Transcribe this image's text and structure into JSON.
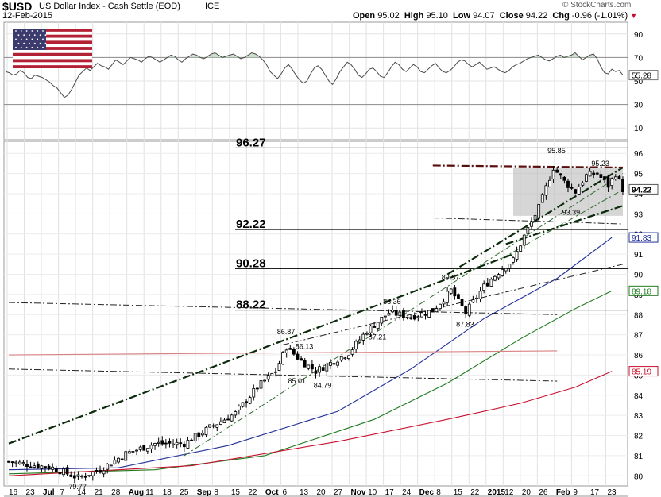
{
  "header": {
    "symbol": "$USD",
    "name": "US Dollar Index - Cash Settle (EOD)",
    "exchange": "ICE",
    "date": "12-Feb-2015",
    "watermark": "© StockCharts.com",
    "open_label": "Open",
    "open": "95.02",
    "high_label": "High",
    "high": "95.10",
    "low_label": "Low",
    "low": "94.07",
    "close_label": "Close",
    "close": "94.22",
    "chg_label": "Chg",
    "chg": "-0.96 (-1.01%)"
  },
  "colors": {
    "candle": "#000000",
    "sma_blue": "#1f2f9a",
    "sma_green": "#1e7a1e",
    "sma_red": "#c8102e",
    "pink_line": "#d98080",
    "rsi_line": "#4a4a4a",
    "flag_field": "#ffffff",
    "flag_fill": "#b22234",
    "flag_canton": "#3c3b6e"
  },
  "chart_data": [
    {
      "type": "line",
      "panel": "indicator",
      "ylim": [
        0,
        100
      ],
      "yticks": [
        10,
        30,
        50,
        70,
        90
      ],
      "last_value_label": "55.28",
      "overbought": 70,
      "oversold": 30,
      "values": [
        58,
        57,
        55,
        56,
        59,
        57,
        53,
        52,
        55,
        54,
        53,
        51,
        49,
        46,
        44,
        40,
        36,
        38,
        43,
        49,
        55,
        58,
        61,
        59,
        62,
        65,
        63,
        62,
        60,
        64,
        68,
        66,
        64,
        67,
        70,
        69,
        68,
        66,
        69,
        71,
        70,
        68,
        66,
        68,
        70,
        72,
        71,
        68,
        66,
        69,
        71,
        73,
        72,
        70,
        69,
        71,
        73,
        74,
        72,
        70,
        71,
        72,
        73,
        71,
        69,
        70,
        72,
        74,
        73,
        71,
        68,
        64,
        58,
        55,
        52,
        56,
        61,
        64,
        60,
        55,
        51,
        48,
        50,
        56,
        61,
        63,
        60,
        55,
        50,
        47,
        52,
        58,
        62,
        66,
        64,
        60,
        55,
        53,
        56,
        60,
        61,
        58,
        54,
        53,
        57,
        62,
        66,
        64,
        60,
        58,
        61,
        64,
        62,
        58,
        57,
        60,
        63,
        65,
        61,
        58,
        57,
        59,
        62,
        66,
        68,
        67,
        64,
        62,
        64,
        66,
        63,
        60,
        61,
        62,
        60,
        58,
        57,
        59,
        62,
        64,
        65,
        67,
        69,
        70,
        71,
        72,
        70,
        68,
        67,
        69,
        71,
        72,
        70,
        71,
        72,
        74,
        71,
        68,
        70,
        72,
        73,
        69,
        62,
        57,
        56,
        60,
        58,
        59,
        55
      ]
    },
    {
      "type": "candlestick",
      "panel": "price",
      "ylim": [
        79.5,
        96.6
      ],
      "yticks": [
        80,
        81,
        82,
        83,
        84,
        85,
        86,
        87,
        88,
        89,
        90,
        91,
        92,
        93,
        94,
        95,
        96
      ],
      "x_labels": [
        "16",
        "23",
        "Jul",
        "7",
        "14",
        "21",
        "28",
        "Aug",
        "11",
        "18",
        "25",
        "Sep",
        "8",
        "15",
        "22",
        "Oct",
        "6",
        "13",
        "20",
        "27",
        "Nov",
        "10",
        "17",
        "24",
        "Dec",
        "8",
        "15",
        "22",
        "2015",
        "12",
        "20",
        "26",
        "Feb",
        "9",
        "17",
        "23"
      ],
      "x_label_bold": [
        "Jul",
        "Aug",
        "Sep",
        "Oct",
        "Nov",
        "Dec",
        "2015",
        "Feb"
      ],
      "price_labels": [
        "96.27",
        "92.22",
        "90.28",
        "88.22"
      ],
      "price_levels": [
        96.27,
        92.22,
        90.28,
        88.22
      ],
      "annotations": [
        {
          "text": "79.77",
          "x": 19,
          "y": 79.77
        },
        {
          "text": "86.87",
          "x": 76,
          "y": 86.87
        },
        {
          "text": "86.13",
          "x": 81,
          "y": 86.13
        },
        {
          "text": "85.01",
          "x": 79,
          "y": 85.01
        },
        {
          "text": "84.79",
          "x": 86,
          "y": 84.79
        },
        {
          "text": "88.36",
          "x": 105,
          "y": 88.36
        },
        {
          "text": "87.21",
          "x": 101,
          "y": 87.21
        },
        {
          "text": "89.57",
          "x": 121,
          "y": 89.57
        },
        {
          "text": "87.83",
          "x": 125,
          "y": 87.83
        },
        {
          "text": "95.85",
          "x": 150,
          "y": 95.85
        },
        {
          "text": "95.23",
          "x": 162,
          "y": 95.23
        },
        {
          "text": "93.39",
          "x": 154,
          "y": 93.39
        }
      ],
      "last_values": [
        {
          "text": "94.22",
          "y": 94.22,
          "bold": true
        },
        {
          "text": "91.83",
          "y": 91.83
        },
        {
          "text": "89.18",
          "y": 89.18
        },
        {
          "text": "85.19",
          "y": 85.19
        }
      ],
      "channel_box": {
        "x1": 138,
        "x2": 168,
        "y1": 92.9,
        "y2": 95.3
      },
      "candle_summary": {
        "count": 169,
        "start_close": 80.7,
        "end_close": 94.22
      },
      "sma": [
        {
          "name": "blue",
          "points": [
            [
              0,
              80.3
            ],
            [
              30,
              80.4
            ],
            [
              60,
              81.5
            ],
            [
              90,
              83.2
            ],
            [
              110,
              85.3
            ],
            [
              130,
              87.8
            ],
            [
              150,
              89.8
            ],
            [
              165,
              91.83
            ]
          ]
        },
        {
          "name": "green",
          "points": [
            [
              0,
              80.1
            ],
            [
              40,
              80.3
            ],
            [
              70,
              81.0
            ],
            [
              100,
              82.8
            ],
            [
              120,
              84.6
            ],
            [
              140,
              86.8
            ],
            [
              155,
              88.3
            ],
            [
              165,
              89.18
            ]
          ]
        },
        {
          "name": "red",
          "points": [
            [
              0,
              80.0
            ],
            [
              50,
              80.5
            ],
            [
              90,
              81.7
            ],
            [
              120,
              82.8
            ],
            [
              140,
              83.6
            ],
            [
              155,
              84.4
            ],
            [
              165,
              85.19
            ]
          ]
        }
      ],
      "trendlines": [
        {
          "style": "thick-dashdot",
          "points": [
            [
              0,
              81.6
            ],
            [
              138,
              91.0
            ]
          ]
        },
        {
          "style": "thick-dashdot",
          "points": [
            [
              120,
              90.0
            ],
            [
              168,
              95.3
            ]
          ]
        },
        {
          "style": "thin-dashdot-green",
          "points": [
            [
              48,
              81.0
            ],
            [
              168,
              95.0
            ]
          ]
        },
        {
          "style": "thin-dashdot-green",
          "points": [
            [
              135,
              90.8
            ],
            [
              168,
              94.2
            ]
          ]
        },
        {
          "style": "thick-dashdot",
          "points": [
            [
              136,
              91.5
            ],
            [
              168,
              93.4
            ]
          ]
        },
        {
          "style": "thin-dashdot",
          "points": [
            [
              75,
              86.5
            ],
            [
              168,
              90.5
            ]
          ]
        },
        {
          "style": "thin-dashdot",
          "points": [
            [
              0,
              88.6
            ],
            [
              150,
              88.0
            ]
          ]
        },
        {
          "style": "thin-dashdot",
          "points": [
            [
              0,
              85.3
            ],
            [
              150,
              84.7
            ]
          ]
        },
        {
          "style": "thin-dashdot",
          "points": [
            [
              116,
              92.8
            ],
            [
              168,
              92.5
            ]
          ]
        },
        {
          "style": "maroon-dashdot",
          "points": [
            [
              116,
              95.4
            ],
            [
              168,
              95.3
            ]
          ]
        },
        {
          "style": "pink",
          "points": [
            [
              0,
              86.0
            ],
            [
              150,
              86.2
            ]
          ]
        }
      ]
    }
  ]
}
